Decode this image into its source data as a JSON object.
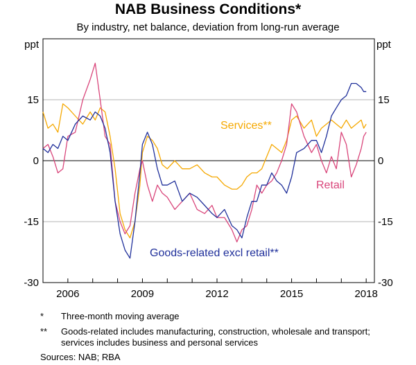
{
  "title": "NAB Business Conditions*",
  "subtitle": "By industry, net balance, deviation from long-run average",
  "colors": {
    "goods": "#1f2f9a",
    "services": "#f5a800",
    "retail": "#d9457a",
    "axis": "#000000",
    "grid": "#b3b3b3"
  },
  "chart_data": {
    "type": "line",
    "title": "NAB Business Conditions*",
    "subtitle": "By industry, net balance, deviation from long-run average",
    "ylabel_left": "ppt",
    "ylabel_right": "ppt",
    "ylim": [
      -30,
      30
    ],
    "yticks": [
      -30,
      -15,
      0,
      15
    ],
    "xlim": [
      2005.0,
      2018.33
    ],
    "xticks": [
      2006,
      2009,
      2012,
      2015,
      2018
    ],
    "xtick_labels": [
      "2006",
      "2009",
      "2012",
      "2015",
      "2018"
    ],
    "series": [
      {
        "name": "Goods-related excl retail**",
        "key": "goods",
        "label_text": "Goods-related excl retail**",
        "x": [
          2005.0,
          2005.2,
          2005.4,
          2005.6,
          2005.8,
          2006.0,
          2006.3,
          2006.6,
          2006.9,
          2007.1,
          2007.3,
          2007.5,
          2007.7,
          2007.9,
          2008.1,
          2008.3,
          2008.5,
          2008.7,
          2008.9,
          2009.0,
          2009.2,
          2009.4,
          2009.6,
          2009.8,
          2010.0,
          2010.3,
          2010.6,
          2010.9,
          2011.2,
          2011.5,
          2011.8,
          2012.0,
          2012.3,
          2012.6,
          2012.8,
          2013.0,
          2013.2,
          2013.4,
          2013.6,
          2013.8,
          2014.0,
          2014.2,
          2014.4,
          2014.6,
          2014.8,
          2015.0,
          2015.2,
          2015.5,
          2015.8,
          2016.0,
          2016.2,
          2016.4,
          2016.6,
          2016.8,
          2017.0,
          2017.2,
          2017.4,
          2017.6,
          2017.8,
          2017.9,
          2018.0
        ],
        "values": [
          3,
          2,
          4,
          3,
          6,
          5,
          9,
          11,
          10,
          12,
          11,
          8,
          2,
          -10,
          -18,
          -22,
          -24,
          -15,
          -3,
          4,
          7,
          4,
          -2,
          -6,
          -6,
          -5,
          -10,
          -8,
          -9,
          -11,
          -13,
          -14,
          -12,
          -16,
          -17,
          -19,
          -14,
          -10,
          -10,
          -6,
          -6,
          -3,
          -5,
          -6,
          -8,
          -4,
          2,
          3,
          5,
          5,
          2,
          6,
          11,
          13,
          15,
          16,
          19,
          19,
          18,
          17,
          17
        ]
      },
      {
        "name": "Services**",
        "key": "services",
        "label_text": "Services**",
        "x": [
          2005.0,
          2005.2,
          2005.4,
          2005.6,
          2005.8,
          2006.0,
          2006.3,
          2006.6,
          2006.9,
          2007.1,
          2007.3,
          2007.5,
          2007.7,
          2007.9,
          2008.1,
          2008.3,
          2008.5,
          2008.7,
          2008.9,
          2009.0,
          2009.2,
          2009.4,
          2009.6,
          2009.8,
          2010.0,
          2010.3,
          2010.6,
          2010.9,
          2011.2,
          2011.5,
          2011.8,
          2012.0,
          2012.3,
          2012.6,
          2012.8,
          2013.0,
          2013.2,
          2013.4,
          2013.6,
          2013.8,
          2014.0,
          2014.2,
          2014.4,
          2014.6,
          2014.8,
          2015.0,
          2015.2,
          2015.5,
          2015.8,
          2016.0,
          2016.2,
          2016.4,
          2016.6,
          2016.8,
          2017.0,
          2017.2,
          2017.4,
          2017.6,
          2017.8,
          2017.9,
          2018.0
        ],
        "values": [
          12,
          8,
          9,
          7,
          14,
          13,
          11,
          9,
          12,
          10,
          13,
          12,
          6,
          -2,
          -13,
          -17,
          -19,
          -15,
          -6,
          2,
          6,
          5,
          3,
          -1,
          -2,
          0,
          -2,
          -2,
          -1,
          -3,
          -4,
          -4,
          -6,
          -7,
          -7,
          -6,
          -4,
          -3,
          -3,
          -2,
          1,
          4,
          3,
          2,
          5,
          10,
          11,
          8,
          10,
          6,
          8,
          9,
          10,
          9,
          8,
          10,
          8,
          9,
          10,
          8,
          9
        ]
      },
      {
        "name": "Retail",
        "key": "retail",
        "label_text": "Retail",
        "x": [
          2005.0,
          2005.2,
          2005.4,
          2005.6,
          2005.8,
          2006.0,
          2006.3,
          2006.6,
          2006.9,
          2007.1,
          2007.3,
          2007.5,
          2007.7,
          2007.9,
          2008.1,
          2008.3,
          2008.5,
          2008.7,
          2008.9,
          2009.0,
          2009.2,
          2009.4,
          2009.6,
          2009.8,
          2010.0,
          2010.3,
          2010.6,
          2010.9,
          2011.2,
          2011.5,
          2011.8,
          2012.0,
          2012.3,
          2012.6,
          2012.8,
          2013.0,
          2013.2,
          2013.4,
          2013.6,
          2013.8,
          2014.0,
          2014.2,
          2014.4,
          2014.6,
          2014.8,
          2015.0,
          2015.2,
          2015.5,
          2015.8,
          2016.0,
          2016.2,
          2016.4,
          2016.6,
          2016.8,
          2017.0,
          2017.2,
          2017.4,
          2017.6,
          2017.8,
          2017.9,
          2018.0
        ],
        "values": [
          3,
          4,
          1,
          -3,
          -2,
          6,
          7,
          15,
          20,
          24,
          15,
          6,
          4,
          -10,
          -15,
          -18,
          -16,
          -8,
          -2,
          0,
          -6,
          -10,
          -6,
          -8,
          -9,
          -12,
          -10,
          -8,
          -12,
          -13,
          -11,
          -14,
          -14,
          -17,
          -20,
          -17,
          -16,
          -12,
          -6,
          -8,
          -6,
          -5,
          -3,
          0,
          4,
          14,
          12,
          6,
          2,
          4,
          0,
          -3,
          1,
          -2,
          7,
          4,
          -4,
          -1,
          3,
          6,
          7
        ]
      }
    ],
    "annotations": {
      "services_label": "Services**",
      "retail_label": "Retail",
      "goods_label": "Goods-related excl retail**"
    }
  },
  "notes": [
    {
      "mark": "*",
      "text": "Three-month moving average"
    },
    {
      "mark": "**",
      "text": "Goods-related includes manufacturing, construction, wholesale and transport; services includes business and personal services"
    }
  ],
  "sources": "Sources:  NAB; RBA"
}
